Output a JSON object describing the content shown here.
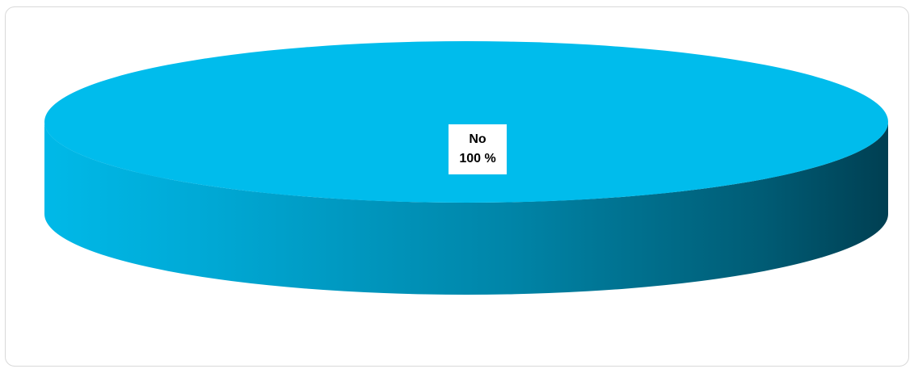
{
  "chart_data": {
    "type": "pie",
    "title": "",
    "three_d": true,
    "slices": [
      {
        "label": "No",
        "value": 100,
        "value_text": "100 %",
        "color": "#00BCEC"
      }
    ],
    "legend": "none"
  },
  "colors": {
    "top_face": "#00BCEC",
    "side_light": "#00B2DF",
    "side_mid": "#0080A0",
    "side_dark": "#004A5E",
    "frame_border": "#D9D9D9"
  }
}
